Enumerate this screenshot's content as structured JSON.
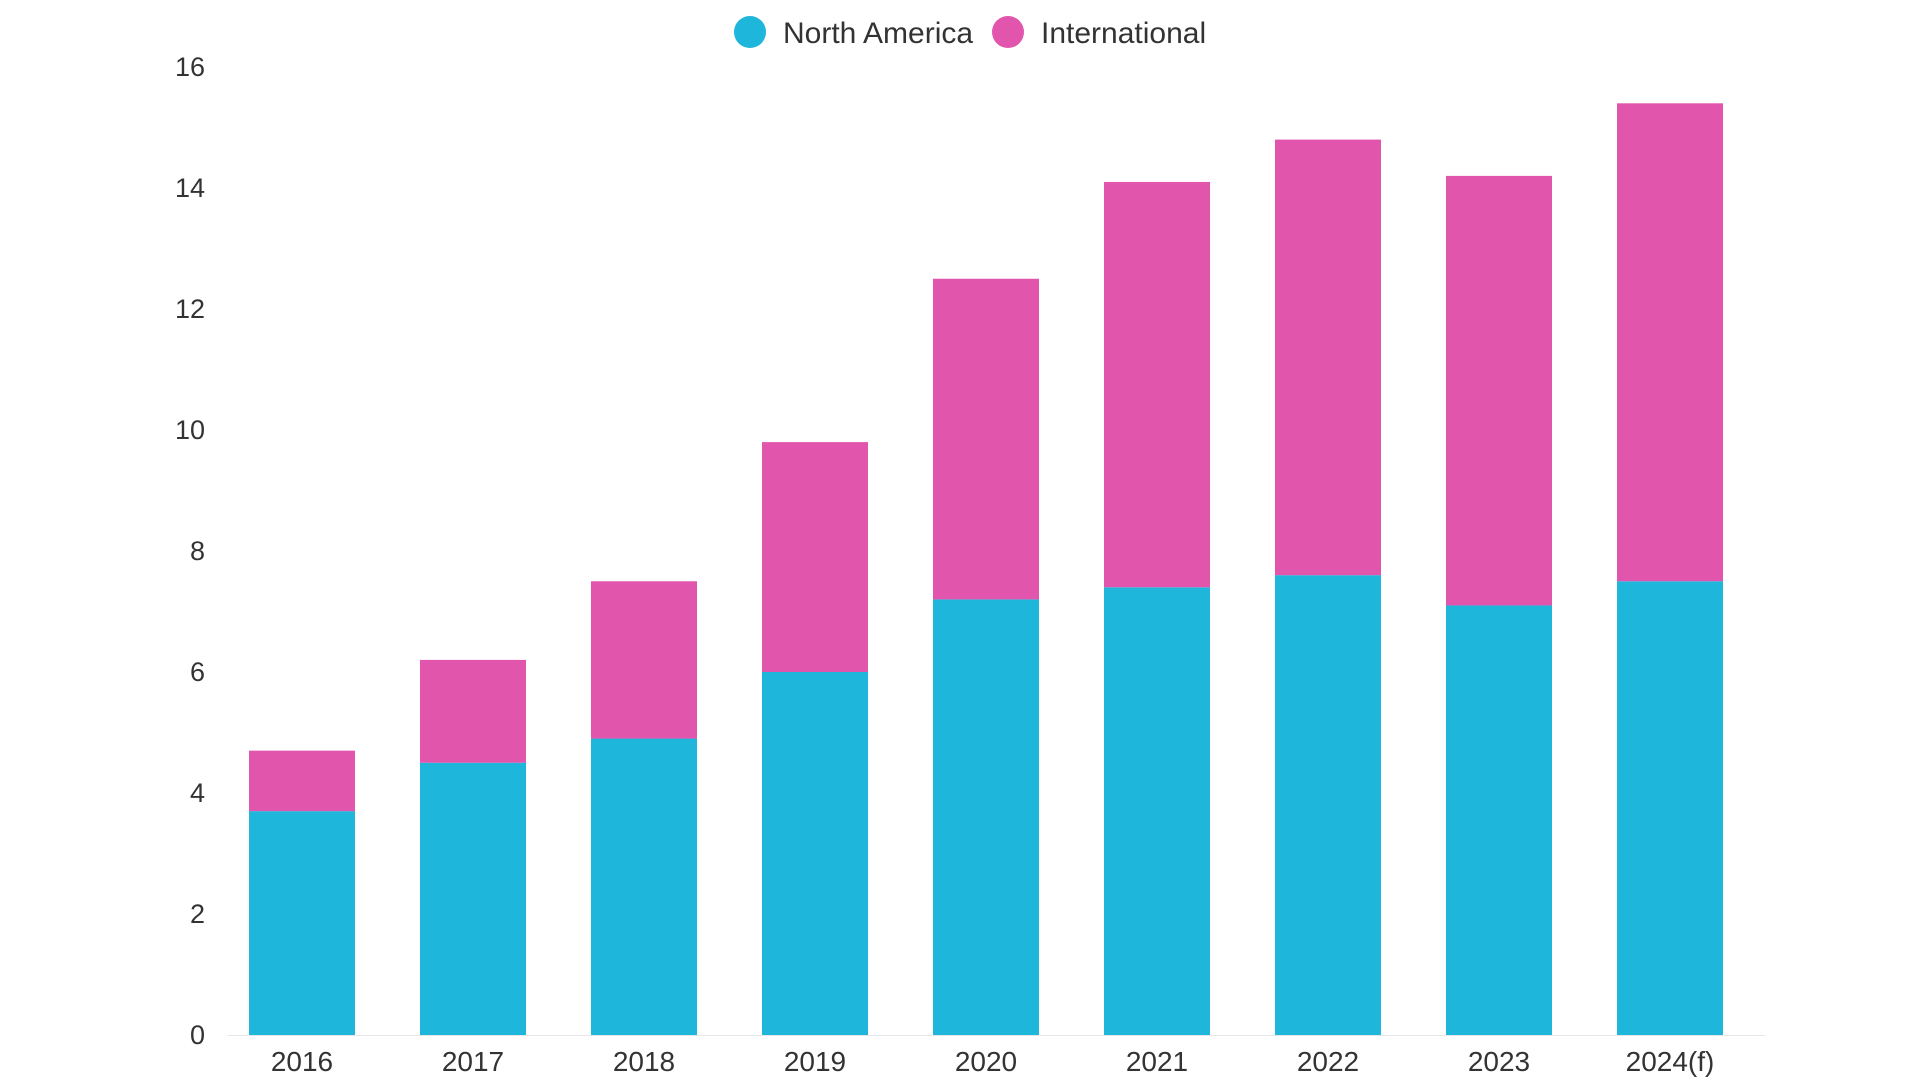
{
  "chart_data": {
    "type": "bar",
    "stacked": true,
    "categories": [
      "2016",
      "2017",
      "2018",
      "2019",
      "2020",
      "2021",
      "2022",
      "2023",
      "2024(f)"
    ],
    "series": [
      {
        "name": "North America",
        "color": "#1fb6dc",
        "values": [
          3.7,
          4.5,
          4.9,
          6.0,
          7.2,
          7.4,
          7.6,
          7.1,
          7.5
        ]
      },
      {
        "name": "International",
        "color": "#e155ad",
        "values": [
          1.0,
          1.7,
          2.6,
          3.8,
          5.3,
          6.7,
          7.2,
          7.1,
          7.9
        ]
      }
    ],
    "title": "",
    "xlabel": "",
    "ylabel": "",
    "ylim": [
      0,
      16
    ],
    "yticks": [
      "0",
      "2",
      "4",
      "6",
      "8",
      "10",
      "12",
      "14",
      "16"
    ],
    "grid": false,
    "legend_position": "top-center"
  }
}
